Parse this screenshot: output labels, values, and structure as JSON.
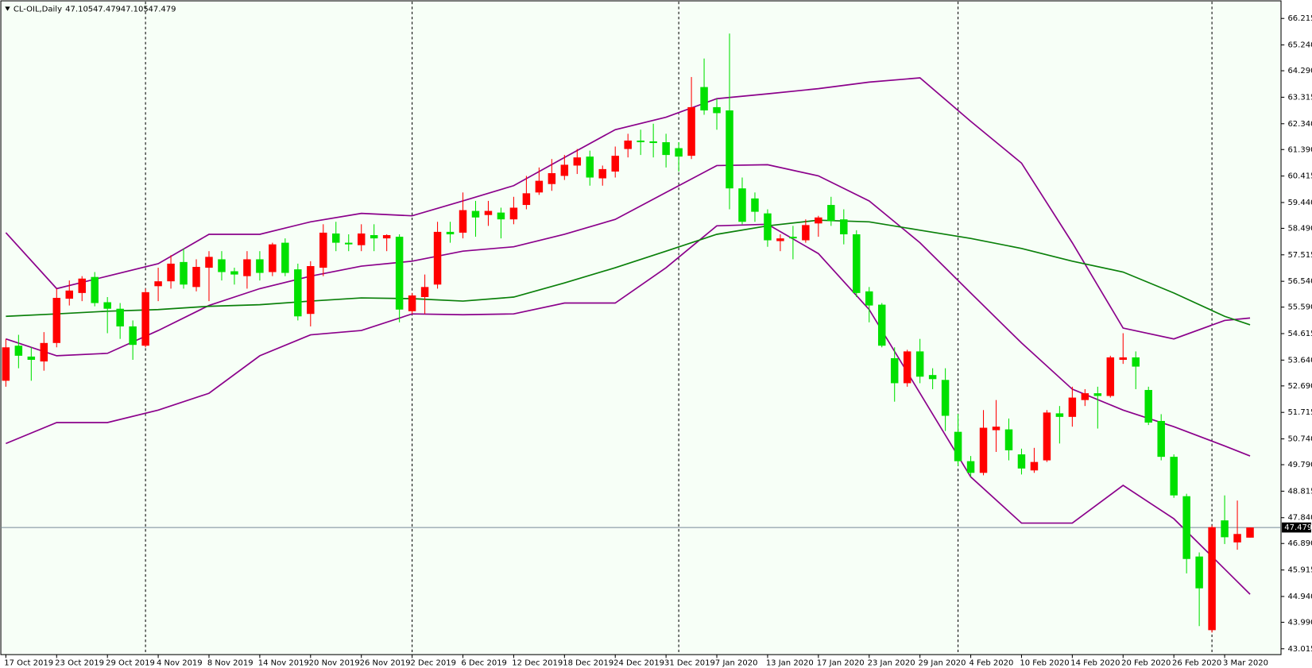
{
  "chart_data": {
    "type": "candlestick",
    "title": "CL-OIL,Daily",
    "categories": [
      "17 Oct 2019",
      null,
      null,
      null,
      "23 Oct 2019",
      null,
      null,
      null,
      "29 Oct 2019",
      null,
      null,
      null,
      "4 Nov 2019",
      null,
      null,
      null,
      "8 Nov 2019",
      null,
      null,
      null,
      "14 Nov 2019",
      null,
      null,
      null,
      "20 Nov 2019",
      null,
      null,
      null,
      "26 Nov 2019",
      null,
      null,
      null,
      "2 Dec 2019",
      null,
      null,
      null,
      "6 Dec 2019",
      null,
      null,
      null,
      "12 Dec 2019",
      null,
      null,
      null,
      "18 Dec 2019",
      null,
      null,
      null,
      "24 Dec 2019",
      null,
      null,
      null,
      "31 Dec 2019",
      null,
      null,
      null,
      "7 Jan 2020",
      null,
      null,
      null,
      "13 Jan 2020",
      null,
      null,
      null,
      "17 Jan 2020",
      null,
      null,
      null,
      "23 Jan 2020",
      null,
      null,
      null,
      "29 Jan 2020",
      null,
      null,
      null,
      "4 Feb 2020",
      null,
      null,
      null,
      "10 Feb 2020",
      null,
      null,
      null,
      "14 Feb 2020",
      null,
      null,
      null,
      "20 Feb 2020",
      null,
      null,
      null,
      "26 Feb 2020",
      null,
      null,
      null,
      "3 Mar 2020",
      null,
      null
    ],
    "open": [
      52.88,
      54.17,
      53.77,
      53.59,
      54.27,
      55.9,
      56.11,
      56.7,
      55.77,
      55.53,
      54.88,
      54.17,
      56.36,
      56.54,
      57.25,
      56.33,
      57.04,
      57.35,
      56.91,
      56.73,
      57.35,
      56.88,
      57.96,
      56.98,
      55.34,
      57.04,
      58.3,
      57.96,
      57.87,
      58.24,
      58.12,
      58.18,
      55.44,
      55.96,
      56.42,
      58.36,
      58.33,
      59.13,
      58.98,
      59.07,
      58.82,
      59.35,
      59.81,
      60.12,
      60.42,
      60.8,
      61.13,
      60.33,
      60.58,
      61.41,
      61.72,
      61.69,
      61.66,
      61.44,
      61.16,
      63.69,
      62.95,
      62.83,
      59.96,
      59.59,
      59.04,
      58.02,
      58.18,
      58.05,
      58.67,
      59.35,
      58.82,
      58.27,
      56.17,
      55.68,
      53.71,
      52.79,
      53.96,
      53.09,
      52.91,
      51.0,
      49.92,
      49.49,
      51.06,
      51.09,
      50.17,
      49.58,
      49.95,
      51.68,
      51.55,
      52.17,
      52.42,
      52.32,
      53.65,
      53.74,
      52.54,
      51.4,
      50.08,
      48.63,
      46.41,
      43.7,
      47.74,
      46.93,
      47.105
    ],
    "high": [
      54.42,
      54.57,
      54.11,
      54.67,
      56.27,
      56.57,
      56.73,
      56.88,
      55.96,
      55.74,
      55.1,
      56.27,
      57.04,
      57.5,
      57.75,
      57.35,
      57.65,
      57.65,
      57.04,
      57.65,
      57.65,
      57.96,
      58.12,
      57.19,
      57.28,
      58.64,
      58.73,
      58.27,
      58.64,
      58.64,
      58.27,
      58.27,
      56.11,
      56.79,
      58.73,
      58.73,
      59.81,
      59.5,
      59.5,
      59.25,
      59.65,
      60.42,
      60.73,
      61.04,
      61.19,
      61.41,
      61.35,
      60.8,
      61.5,
      61.97,
      62.12,
      62.34,
      61.97,
      61.66,
      64.06,
      64.74,
      63.26,
      65.66,
      60.36,
      59.81,
      59.19,
      58.27,
      58.58,
      58.82,
      58.95,
      59.65,
      59.19,
      58.42,
      56.33,
      55.74,
      54.11,
      54.02,
      54.42,
      53.34,
      53.34,
      51.65,
      50.11,
      51.8,
      52.17,
      51.49,
      50.38,
      50.41,
      51.8,
      51.95,
      52.66,
      52.57,
      52.66,
      53.8,
      54.63,
      53.96,
      52.66,
      51.65,
      50.17,
      48.72,
      46.56,
      47.55,
      48.66,
      48.47,
      47.479
    ],
    "low": [
      52.66,
      53.34,
      52.88,
      53.25,
      54.11,
      55.65,
      55.81,
      55.62,
      54.63,
      54.42,
      53.65,
      54.11,
      55.81,
      56.27,
      56.27,
      56.17,
      55.81,
      56.57,
      56.42,
      56.27,
      56.57,
      56.73,
      56.73,
      55.1,
      54.88,
      56.73,
      57.65,
      57.65,
      57.65,
      57.65,
      57.65,
      55.03,
      55.34,
      55.34,
      56.27,
      57.96,
      58.12,
      58.18,
      58.58,
      58.12,
      58.64,
      59.19,
      59.72,
      59.87,
      60.27,
      60.49,
      60.06,
      60.06,
      60.36,
      61.1,
      61.19,
      61.1,
      60.73,
      60.58,
      61.04,
      62.67,
      62.12,
      59.19,
      58.64,
      58.73,
      57.81,
      57.65,
      57.35,
      57.96,
      58.18,
      58.58,
      57.9,
      55.96,
      55.03,
      54.11,
      52.11,
      52.66,
      52.79,
      52.57,
      51.03,
      49.74,
      49.34,
      49.4,
      50.26,
      49.95,
      49.43,
      49.49,
      49.89,
      50.57,
      51.19,
      51.95,
      51.12,
      52.26,
      53.5,
      52.57,
      51.25,
      49.95,
      48.57,
      45.79,
      43.85,
      43.61,
      46.87,
      46.66,
      47.105
    ],
    "close": [
      54.11,
      53.8,
      53.65,
      54.27,
      55.93,
      56.2,
      56.64,
      55.74,
      55.53,
      54.88,
      54.2,
      56.14,
      56.54,
      57.19,
      56.42,
      57.07,
      57.44,
      56.88,
      56.79,
      57.35,
      56.85,
      57.9,
      56.85,
      55.25,
      57.1,
      58.33,
      57.96,
      57.9,
      58.3,
      58.12,
      58.24,
      55.5,
      56.02,
      56.33,
      58.36,
      58.27,
      59.16,
      58.89,
      59.13,
      58.82,
      59.25,
      59.78,
      60.24,
      60.52,
      60.83,
      61.1,
      60.36,
      60.67,
      61.16,
      61.72,
      61.66,
      61.63,
      61.19,
      61.13,
      62.95,
      62.83,
      62.73,
      59.96,
      58.73,
      59.1,
      58.05,
      58.12,
      58.12,
      58.61,
      58.89,
      58.76,
      58.27,
      56.11,
      55.65,
      54.17,
      52.79,
      53.96,
      53.03,
      52.94,
      51.59,
      49.92,
      49.49,
      51.15,
      51.19,
      50.32,
      49.65,
      49.89,
      51.71,
      51.55,
      52.26,
      52.42,
      52.32,
      53.74,
      53.74,
      53.4,
      51.34,
      50.08,
      48.66,
      46.32,
      45.24,
      47.49,
      47.12,
      47.24,
      47.479
    ],
    "up_color": "#ff0000",
    "down_color": "#00e000",
    "ylim": [
      42.8,
      66.74
    ],
    "yticks": [
      66.215,
      {
        "value": 65.24,
        "label": "65.240"
      },
      {
        "value": 64.29,
        "label": "64.290"
      },
      63.315,
      {
        "value": 62.34,
        "label": "62.340"
      },
      {
        "value": 61.39,
        "label": "61.390"
      },
      60.415,
      {
        "value": 59.44,
        "label": "59.440"
      },
      {
        "value": 58.49,
        "label": "58.490"
      },
      57.515,
      {
        "value": 56.54,
        "label": "56.540"
      },
      {
        "value": 55.59,
        "label": "55.590"
      },
      54.615,
      {
        "value": 53.64,
        "label": "53.640"
      },
      {
        "value": 52.69,
        "label": "52.690"
      },
      51.715,
      {
        "value": 50.74,
        "label": "50.740"
      },
      {
        "value": 49.79,
        "label": "49.790"
      },
      48.815,
      {
        "value": 47.84,
        "label": "47.840"
      },
      {
        "value": 46.89,
        "label": "46.890"
      },
      45.915,
      {
        "value": 44.94,
        "label": "44.940"
      },
      {
        "value": 43.99,
        "label": "43.990"
      },
      43.015
    ],
    "separators": [
      11,
      32,
      53,
      75,
      95
    ],
    "overlays": [
      {
        "color": "#8b008b",
        "x": [
          0,
          4,
          8,
          12,
          16,
          20,
          24,
          28,
          32,
          36,
          40,
          44,
          48,
          52,
          56,
          60,
          64,
          68,
          72,
          76,
          80,
          84,
          88,
          92,
          96,
          98
        ],
        "values": [
          58.33,
          56.27,
          56.73,
          57.19,
          58.27,
          58.27,
          58.73,
          59.04,
          58.95,
          59.5,
          60.06,
          61.1,
          62.12,
          62.58,
          63.26,
          63.44,
          63.63,
          63.87,
          64.03,
          62.43,
          60.89,
          57.96,
          54.82,
          54.42,
          55.1,
          55.19
        ]
      },
      {
        "color": "#8b008b",
        "x": [
          0,
          4,
          8,
          12,
          16,
          20,
          24,
          28,
          32,
          36,
          40,
          44,
          48,
          52,
          56,
          60,
          64,
          68,
          72,
          76,
          80,
          84,
          88,
          92,
          96,
          98
        ],
        "values": [
          54.42,
          53.8,
          53.89,
          54.73,
          55.65,
          56.27,
          56.73,
          57.1,
          57.28,
          57.65,
          57.81,
          58.27,
          58.82,
          59.81,
          60.8,
          60.83,
          60.42,
          59.5,
          57.96,
          56.11,
          54.27,
          52.57,
          51.8,
          51.19,
          50.48,
          50.11
        ]
      },
      {
        "color": "#8b008b",
        "x": [
          0,
          4,
          8,
          12,
          16,
          20,
          24,
          28,
          32,
          36,
          40,
          44,
          48,
          52,
          56,
          60,
          64,
          68,
          72,
          76,
          80,
          84,
          88,
          92,
          96,
          98
        ],
        "values": [
          50.57,
          51.34,
          51.34,
          51.8,
          52.42,
          53.8,
          54.57,
          54.73,
          55.34,
          55.31,
          55.34,
          55.74,
          55.74,
          57.04,
          58.58,
          58.64,
          57.56,
          55.5,
          52.42,
          49.34,
          47.64,
          47.64,
          49.03,
          47.8,
          45.95,
          45.02
        ]
      },
      {
        "color": "#0a800a",
        "x": [
          0,
          4,
          8,
          12,
          16,
          20,
          24,
          28,
          32,
          36,
          40,
          44,
          48,
          52,
          56,
          60,
          64,
          68,
          72,
          76,
          80,
          84,
          88,
          92,
          96,
          98
        ],
        "values": [
          55.25,
          55.34,
          55.44,
          55.5,
          55.62,
          55.68,
          55.81,
          55.93,
          55.9,
          55.81,
          55.96,
          56.48,
          57.04,
          57.65,
          58.27,
          58.58,
          58.79,
          58.73,
          58.42,
          58.12,
          57.75,
          57.28,
          56.88,
          56.11,
          55.25,
          54.94
        ]
      }
    ],
    "price_line_color": "#778899"
  }
}
